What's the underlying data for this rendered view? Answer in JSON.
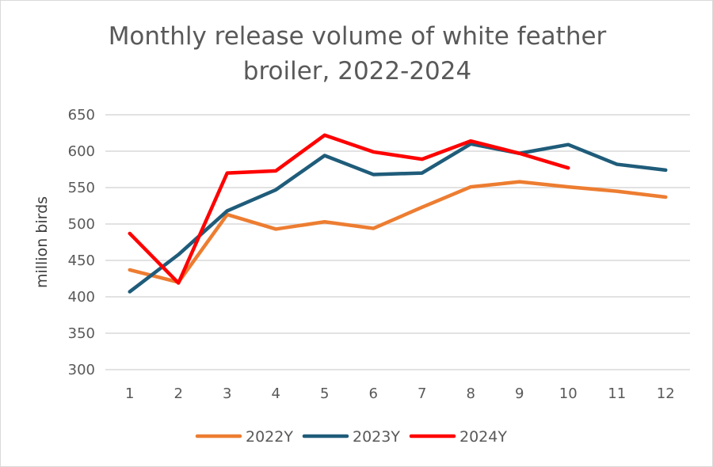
{
  "chart_data": {
    "type": "line",
    "title": "Monthly release volume of white feather broiler, 2022-2024",
    "title_lines": [
      "Monthly release volume of white feather",
      "broiler, 2022-2024"
    ],
    "xlabel": "",
    "ylabel": "million birds",
    "x": [
      1,
      2,
      3,
      4,
      5,
      6,
      7,
      8,
      9,
      10,
      11,
      12
    ],
    "x_tick_labels": [
      "1",
      "2",
      "3",
      "4",
      "5",
      "6",
      "7",
      "8",
      "9",
      "10",
      "11",
      "12"
    ],
    "ylim": [
      300,
      650
    ],
    "y_ticks": [
      300,
      350,
      400,
      450,
      500,
      550,
      600,
      650
    ],
    "y_tick_labels": [
      "300",
      "350",
      "400",
      "450",
      "500",
      "550",
      "600",
      "650"
    ],
    "grid": true,
    "legend_position": "bottom",
    "series": [
      {
        "name": "2022Y",
        "color": "#ED7D31",
        "values": [
          437,
          420,
          513,
          493,
          503,
          494,
          523,
          551,
          558,
          551,
          545,
          537
        ]
      },
      {
        "name": "2023Y",
        "color": "#1F5C7A",
        "values": [
          407,
          458,
          518,
          547,
          594,
          568,
          570,
          610,
          597,
          609,
          582,
          574
        ]
      },
      {
        "name": "2024Y",
        "color": "#FF0000",
        "values": [
          487,
          419,
          570,
          573,
          622,
          599,
          589,
          614,
          597,
          577
        ]
      }
    ]
  }
}
